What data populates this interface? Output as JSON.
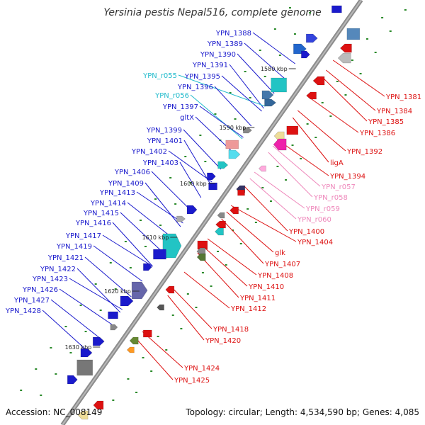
{
  "title": "Yersinia pestis Nepal516, complete genome",
  "footer": {
    "accession": "Accession: NC_008149",
    "summary": "Topology: circular; Length: 4,534,590 bp; Genes: 4,085"
  },
  "kbp_markers": [
    "1580 kbp",
    "1590 kbp",
    "1600 kbp",
    "1610 kbp",
    "1620 kbp",
    "1630 kbp"
  ],
  "left_labels": [
    {
      "text": "YPN_1388",
      "kind": "blue"
    },
    {
      "text": "YPN_1389",
      "kind": "blue"
    },
    {
      "text": "YPN_1390",
      "kind": "blue"
    },
    {
      "text": "YPN_1391",
      "kind": "blue"
    },
    {
      "text": "YPN_r055",
      "kind": "cyan"
    },
    {
      "text": "YPN_1395",
      "kind": "blue"
    },
    {
      "text": "YPN_1396",
      "kind": "blue"
    },
    {
      "text": "YPN_r056",
      "kind": "cyan"
    },
    {
      "text": "YPN_1397",
      "kind": "blue"
    },
    {
      "text": "gltX",
      "kind": "blue"
    },
    {
      "text": "YPN_1399",
      "kind": "blue"
    },
    {
      "text": "YPN_1401",
      "kind": "blue"
    },
    {
      "text": "YPN_1402",
      "kind": "blue"
    },
    {
      "text": "YPN_1403",
      "kind": "blue"
    },
    {
      "text": "YPN_1406",
      "kind": "blue"
    },
    {
      "text": "YPN_1409",
      "kind": "blue"
    },
    {
      "text": "YPN_1413",
      "kind": "blue"
    },
    {
      "text": "YPN_1414",
      "kind": "blue"
    },
    {
      "text": "YPN_1415",
      "kind": "blue"
    },
    {
      "text": "YPN_1416",
      "kind": "blue"
    },
    {
      "text": "YPN_1417",
      "kind": "blue"
    },
    {
      "text": "YPN_1419",
      "kind": "blue"
    },
    {
      "text": "YPN_1421",
      "kind": "blue"
    },
    {
      "text": "YPN_1422",
      "kind": "blue"
    },
    {
      "text": "YPN_1423",
      "kind": "blue"
    },
    {
      "text": "YPN_1426",
      "kind": "blue"
    },
    {
      "text": "YPN_1427",
      "kind": "blue"
    },
    {
      "text": "YPN_1428",
      "kind": "blue"
    }
  ],
  "right_labels": [
    {
      "text": "YPN_1381",
      "kind": "red"
    },
    {
      "text": "YPN_1384",
      "kind": "red"
    },
    {
      "text": "YPN_1385",
      "kind": "red"
    },
    {
      "text": "YPN_1386",
      "kind": "red"
    },
    {
      "text": "YPN_1392",
      "kind": "red"
    },
    {
      "text": "ligA",
      "kind": "red"
    },
    {
      "text": "YPN_1394",
      "kind": "red"
    },
    {
      "text": "YPN_r057",
      "kind": "pink"
    },
    {
      "text": "YPN_r058",
      "kind": "pink"
    },
    {
      "text": "YPN_r059",
      "kind": "pink"
    },
    {
      "text": "YPN_r060",
      "kind": "pink"
    },
    {
      "text": "YPN_1400",
      "kind": "red"
    },
    {
      "text": "YPN_1404",
      "kind": "red"
    },
    {
      "text": "glk",
      "kind": "red"
    },
    {
      "text": "YPN_1407",
      "kind": "red"
    },
    {
      "text": "YPN_1408",
      "kind": "red"
    },
    {
      "text": "YPN_1410",
      "kind": "red"
    },
    {
      "text": "YPN_1411",
      "kind": "red"
    },
    {
      "text": "YPN_1412",
      "kind": "red"
    },
    {
      "text": "YPN_1418",
      "kind": "red"
    },
    {
      "text": "YPN_1420",
      "kind": "red"
    },
    {
      "text": "YPN_1424",
      "kind": "red"
    },
    {
      "text": "YPN_1425",
      "kind": "red"
    }
  ],
  "colors": {
    "blue": "#1a1acc",
    "cyan": "#22bbcc",
    "red": "#dd1111",
    "pink": "#ee88bb",
    "backbone": "#8c8c8c"
  }
}
